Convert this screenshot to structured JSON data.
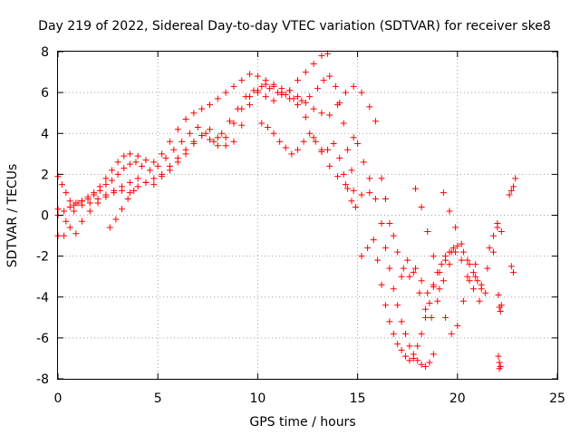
{
  "chart_data": {
    "type": "scatter",
    "title": "Day 219 of 2022, Sidereal Day-to-day VTEC variation (SDTVAR) for receiver ske8",
    "xlabel": "GPS time / hours",
    "ylabel": "SDTVAR / TECUs",
    "xlim": [
      0,
      25
    ],
    "ylim": [
      -8,
      8
    ],
    "xticks": [
      0,
      5,
      10,
      15,
      20,
      25
    ],
    "yticks": [
      -8,
      -6,
      -4,
      -2,
      0,
      2,
      4,
      6,
      8
    ],
    "xtick_labels": [
      "0",
      "5",
      "10",
      "15",
      "20",
      "25"
    ],
    "ytick_labels": [
      "-8",
      "-6",
      "-4",
      "-2",
      "0",
      "2",
      "4",
      "6",
      "8"
    ],
    "grid": true,
    "marker": "+",
    "color": "#ff0000",
    "series": [
      {
        "x": [
          0.0,
          0.2,
          0.4,
          0.6,
          0.8,
          1.0,
          1.2,
          1.5,
          1.8,
          2.1,
          2.4,
          2.7,
          3.0,
          3.3,
          3.6,
          4.0,
          4.4,
          4.8,
          5.2,
          5.6,
          6.0,
          6.4,
          6.8,
          7.2,
          7.6,
          8.0,
          8.4,
          8.8,
          9.2,
          9.6,
          10.0,
          10.4,
          10.8,
          11.2,
          11.6,
          12.0,
          12.4,
          12.8,
          13.2,
          13.5
        ],
        "y": [
          1.9,
          1.5,
          1.1,
          0.7,
          0.5,
          0.6,
          0.7,
          0.9,
          1.1,
          1.4,
          1.8,
          2.2,
          2.6,
          2.9,
          3.0,
          2.9,
          2.7,
          2.6,
          3.0,
          3.6,
          4.2,
          4.7,
          5.0,
          5.2,
          5.4,
          5.7,
          6.0,
          6.3,
          6.6,
          6.9,
          6.8,
          6.6,
          6.4,
          6.2,
          6.1,
          6.6,
          7.0,
          7.4,
          7.8,
          7.9
        ]
      },
      {
        "x": [
          0.0,
          0.3,
          0.6,
          0.9,
          1.2,
          1.5,
          1.8,
          2.1,
          2.4,
          2.7,
          3.0,
          3.3,
          3.6,
          3.9,
          4.2,
          4.6,
          5.0,
          5.4,
          5.8,
          6.2,
          6.6,
          7.0,
          7.4,
          7.8,
          8.2,
          8.6,
          9.0,
          9.4,
          9.8,
          10.2,
          10.6,
          11.0,
          11.4,
          11.8,
          12.2,
          12.6,
          13.0,
          13.3,
          13.6,
          13.9,
          14.1,
          14.3,
          14.5,
          14.7
        ],
        "y": [
          0.3,
          0.2,
          0.4,
          0.6,
          0.7,
          0.8,
          1.0,
          1.2,
          1.5,
          1.7,
          2.0,
          2.3,
          2.5,
          2.6,
          2.4,
          2.2,
          2.4,
          2.8,
          3.2,
          3.6,
          4.0,
          4.3,
          4.0,
          3.6,
          4.0,
          4.6,
          5.2,
          5.8,
          6.1,
          6.3,
          6.2,
          6.0,
          5.9,
          5.7,
          5.6,
          5.8,
          6.2,
          6.6,
          6.8,
          6.3,
          5.5,
          4.5,
          3.2,
          2.2
        ]
      },
      {
        "x": [
          0.0,
          0.4,
          0.8,
          1.2,
          1.6,
          2.0,
          2.4,
          2.8,
          3.2,
          3.6,
          4.0,
          4.4,
          4.8,
          5.2,
          5.6,
          6.0,
          6.4,
          6.8,
          7.2,
          7.6,
          8.0,
          8.4,
          8.8,
          9.2,
          9.6,
          10.0,
          10.4,
          10.8,
          11.2,
          11.6,
          12.0,
          12.4,
          12.8,
          13.2,
          13.6,
          14.0,
          14.4,
          14.8,
          15.2,
          15.6,
          15.9
        ],
        "y": [
          0.0,
          -0.3,
          0.2,
          0.5,
          0.6,
          0.8,
          1.0,
          1.2,
          1.4,
          1.6,
          1.8,
          1.6,
          1.5,
          1.9,
          2.4,
          2.8,
          3.2,
          3.6,
          3.9,
          3.7,
          3.4,
          3.8,
          4.5,
          5.2,
          5.8,
          6.0,
          5.8,
          5.6,
          5.9,
          6.1,
          5.8,
          5.5,
          5.2,
          5.0,
          4.9,
          5.4,
          6.0,
          6.3,
          6.0,
          5.3,
          4.6
        ]
      },
      {
        "x": [
          0.0,
          0.3,
          0.6,
          0.9,
          1.2,
          1.6,
          2.0,
          2.4,
          2.8,
          3.2,
          3.6,
          4.0,
          4.4,
          4.8,
          5.2,
          5.6,
          6.0,
          6.4,
          6.8,
          7.2,
          7.6,
          8.0,
          8.4,
          8.8,
          9.2,
          9.6,
          10.0,
          10.4,
          10.8,
          11.2,
          11.6,
          12.0,
          12.4,
          12.8,
          13.2,
          13.6,
          14.0,
          14.4,
          14.8,
          15.2,
          15.6
        ],
        "y": [
          -1.0,
          -1.0,
          -0.6,
          -0.9,
          -0.3,
          0.2,
          0.6,
          0.9,
          1.1,
          1.2,
          1.1,
          1.4,
          1.6,
          1.8,
          2.0,
          2.2,
          2.6,
          3.0,
          3.5,
          3.9,
          4.2,
          3.8,
          3.4,
          3.6,
          4.4,
          5.4,
          6.1,
          6.4,
          6.3,
          6.0,
          5.7,
          5.4,
          4.8,
          3.8,
          3.1,
          2.4,
          1.9,
          1.5,
          1.2,
          1.0,
          1.1
        ]
      },
      {
        "x": [
          2.6,
          2.9,
          3.2,
          3.5,
          3.8
        ],
        "y": [
          -0.6,
          -0.2,
          0.3,
          0.8,
          1.2
        ]
      },
      {
        "x": [
          10.2,
          10.5,
          10.8,
          11.1,
          11.4,
          11.7,
          12.0,
          12.3,
          12.6,
          12.9,
          13.2,
          13.5,
          13.8,
          14.1,
          14.3,
          14.5,
          14.7,
          14.9
        ],
        "y": [
          4.5,
          4.3,
          4.0,
          3.6,
          3.3,
          3.0,
          3.2,
          3.6,
          4.0,
          3.6,
          3.2,
          3.2,
          3.5,
          2.8,
          2.0,
          1.3,
          0.7,
          0.4
        ]
      },
      {
        "x": [
          14.8,
          15.0,
          15.3,
          15.6,
          15.9,
          16.2,
          16.4,
          16.6,
          16.8,
          17.0,
          17.2,
          17.4,
          17.6,
          17.8,
          18.0,
          18.2,
          18.4,
          18.6,
          18.8
        ],
        "y": [
          3.8,
          3.5,
          2.6,
          1.8,
          0.8,
          -0.4,
          -1.6,
          -2.6,
          -3.6,
          -4.4,
          -5.2,
          -5.8,
          -6.4,
          -6.8,
          -7.1,
          -7.3,
          -7.4,
          -7.2,
          -6.8
        ]
      },
      {
        "x": [
          15.2,
          15.5,
          15.8,
          16.0,
          16.2,
          16.4,
          16.6,
          16.8,
          17.0,
          17.2,
          17.4,
          17.6,
          17.8,
          18.0,
          18.2,
          18.4,
          18.6,
          18.8,
          19.0,
          19.2,
          19.4,
          19.6,
          19.8
        ],
        "y": [
          -2.0,
          -1.6,
          -1.2,
          -2.2,
          -3.4,
          -4.4,
          -5.2,
          -5.8,
          -6.3,
          -6.6,
          -6.9,
          -7.1,
          -7.0,
          -6.4,
          -5.8,
          -5.0,
          -4.3,
          -3.5,
          -2.8,
          -2.4,
          -2.0,
          -1.8,
          -1.6
        ]
      },
      {
        "x": [
          16.2,
          16.4,
          16.6,
          16.8,
          17.0,
          17.3,
          17.6,
          17.9,
          18.2,
          18.5,
          18.8,
          19.1,
          19.4,
          19.7,
          20.0,
          20.3,
          20.6,
          20.9,
          21.2,
          21.5,
          21.8,
          22.0
        ],
        "y": [
          1.8,
          0.8,
          -0.4,
          -1.0,
          -1.8,
          -2.6,
          -3.0,
          -2.6,
          -3.2,
          -3.8,
          -3.4,
          -2.8,
          -2.2,
          -1.8,
          -1.5,
          -1.8,
          -2.4,
          -3.0,
          -3.4,
          -2.6,
          -1.8,
          -0.4
        ]
      },
      {
        "x": [
          17.2,
          17.5,
          17.8,
          18.1,
          18.4,
          18.7,
          19.0,
          19.3,
          19.6,
          19.9,
          20.2,
          20.5,
          20.8,
          21.1,
          21.4
        ],
        "y": [
          -3.0,
          -2.2,
          -2.8,
          -3.8,
          -4.6,
          -5.0,
          -4.2,
          -3.2,
          -2.4,
          -1.8,
          -2.2,
          -3.0,
          -3.6,
          -4.2,
          -3.8
        ]
      },
      {
        "x": [
          17.9,
          18.2,
          18.5,
          18.8,
          19.1,
          19.4,
          19.7,
          20.0,
          20.3,
          20.6,
          20.9
        ],
        "y": [
          1.3,
          0.4,
          -0.8,
          -2.0,
          -3.6,
          -5.0,
          -5.8,
          -5.4,
          -4.2,
          -3.2,
          -2.4
        ]
      },
      {
        "x": [
          19.3,
          19.6,
          19.9,
          20.2,
          20.5,
          20.8,
          21.0,
          21.2
        ],
        "y": [
          1.1,
          0.2,
          -0.6,
          -1.4,
          -2.2,
          -2.8,
          -3.2,
          -3.6
        ]
      },
      {
        "x": [
          21.6,
          21.8,
          22.0,
          22.2
        ],
        "y": [
          -1.6,
          -1.0,
          -0.6,
          -0.8
        ]
      },
      {
        "x": [
          22.05,
          22.1,
          22.15,
          22.2,
          22.05,
          22.1,
          22.15,
          22.1
        ],
        "y": [
          -3.9,
          -4.5,
          -4.7,
          -4.4,
          -6.9,
          -7.2,
          -7.4,
          -7.5
        ]
      },
      {
        "x": [
          22.6,
          22.7,
          22.8,
          22.9,
          22.7,
          22.8
        ],
        "y": [
          1.0,
          1.2,
          1.4,
          1.8,
          -2.5,
          -2.8
        ]
      }
    ]
  }
}
